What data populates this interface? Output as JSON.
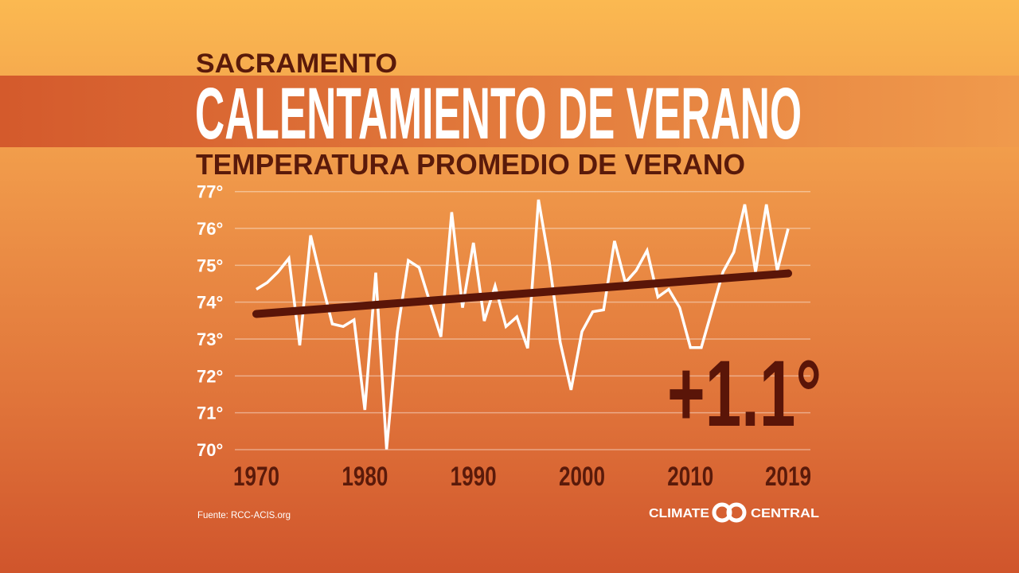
{
  "header": {
    "city": "SACRAMENTO",
    "title": "CALENTAMIENTO DE VERANO",
    "subtitle": "TEMPERATURA PROMEDIO DE VERANO"
  },
  "annotation": "+1.1°",
  "footer": {
    "source": "Fuente: RCC-ACIS.org",
    "logo_left": "CLIMATE",
    "logo_right": "CENTRAL"
  },
  "colors": {
    "background_top": "#fbb850",
    "background_bottom": "#d3592e",
    "text_dark": "#5a1a0a",
    "series_line": "#ffffff",
    "trend_line": "#5a1508"
  },
  "chart_data": {
    "type": "line",
    "title": "TEMPERATURA PROMEDIO DE VERANO",
    "xlabel": "",
    "ylabel": "",
    "xlim": [
      1970,
      2019
    ],
    "ylim": [
      70,
      77
    ],
    "x_ticks": [
      "1970",
      "1980",
      "1990",
      "2000",
      "2010",
      "2019"
    ],
    "y_ticks": [
      "70°",
      "71°",
      "72°",
      "73°",
      "74°",
      "75°",
      "76°",
      "77°"
    ],
    "grid": true,
    "x": [
      1970,
      1971,
      1972,
      1973,
      1974,
      1975,
      1976,
      1977,
      1978,
      1979,
      1980,
      1981,
      1982,
      1983,
      1984,
      1985,
      1986,
      1987,
      1988,
      1989,
      1990,
      1991,
      1992,
      1993,
      1994,
      1995,
      1996,
      1997,
      1998,
      1999,
      2000,
      2001,
      2002,
      2003,
      2004,
      2005,
      2006,
      2007,
      2008,
      2009,
      2010,
      2011,
      2012,
      2013,
      2014,
      2015,
      2016,
      2017,
      2018,
      2019
    ],
    "series": [
      {
        "values": [
          74.35,
          74.53,
          74.82,
          75.19,
          72.83,
          75.81,
          74.57,
          73.41,
          73.34,
          73.52,
          71.08,
          74.8,
          70.01,
          73.2,
          75.13,
          74.94,
          73.99,
          73.06,
          76.44,
          73.85,
          75.61,
          73.49,
          74.44,
          73.34,
          73.6,
          72.75,
          76.78,
          75.07,
          72.91,
          71.62,
          73.2,
          73.74,
          73.79,
          75.66,
          74.53,
          74.86,
          75.4,
          74.14,
          74.35,
          73.85,
          72.77,
          72.77,
          73.8,
          74.82,
          75.36,
          76.65,
          74.82,
          76.65,
          74.86,
          75.99
        ]
      }
    ],
    "trend": {
      "x": [
        1970,
        2019
      ],
      "y": [
        73.68,
        74.78
      ],
      "change": "+1.1°"
    }
  }
}
